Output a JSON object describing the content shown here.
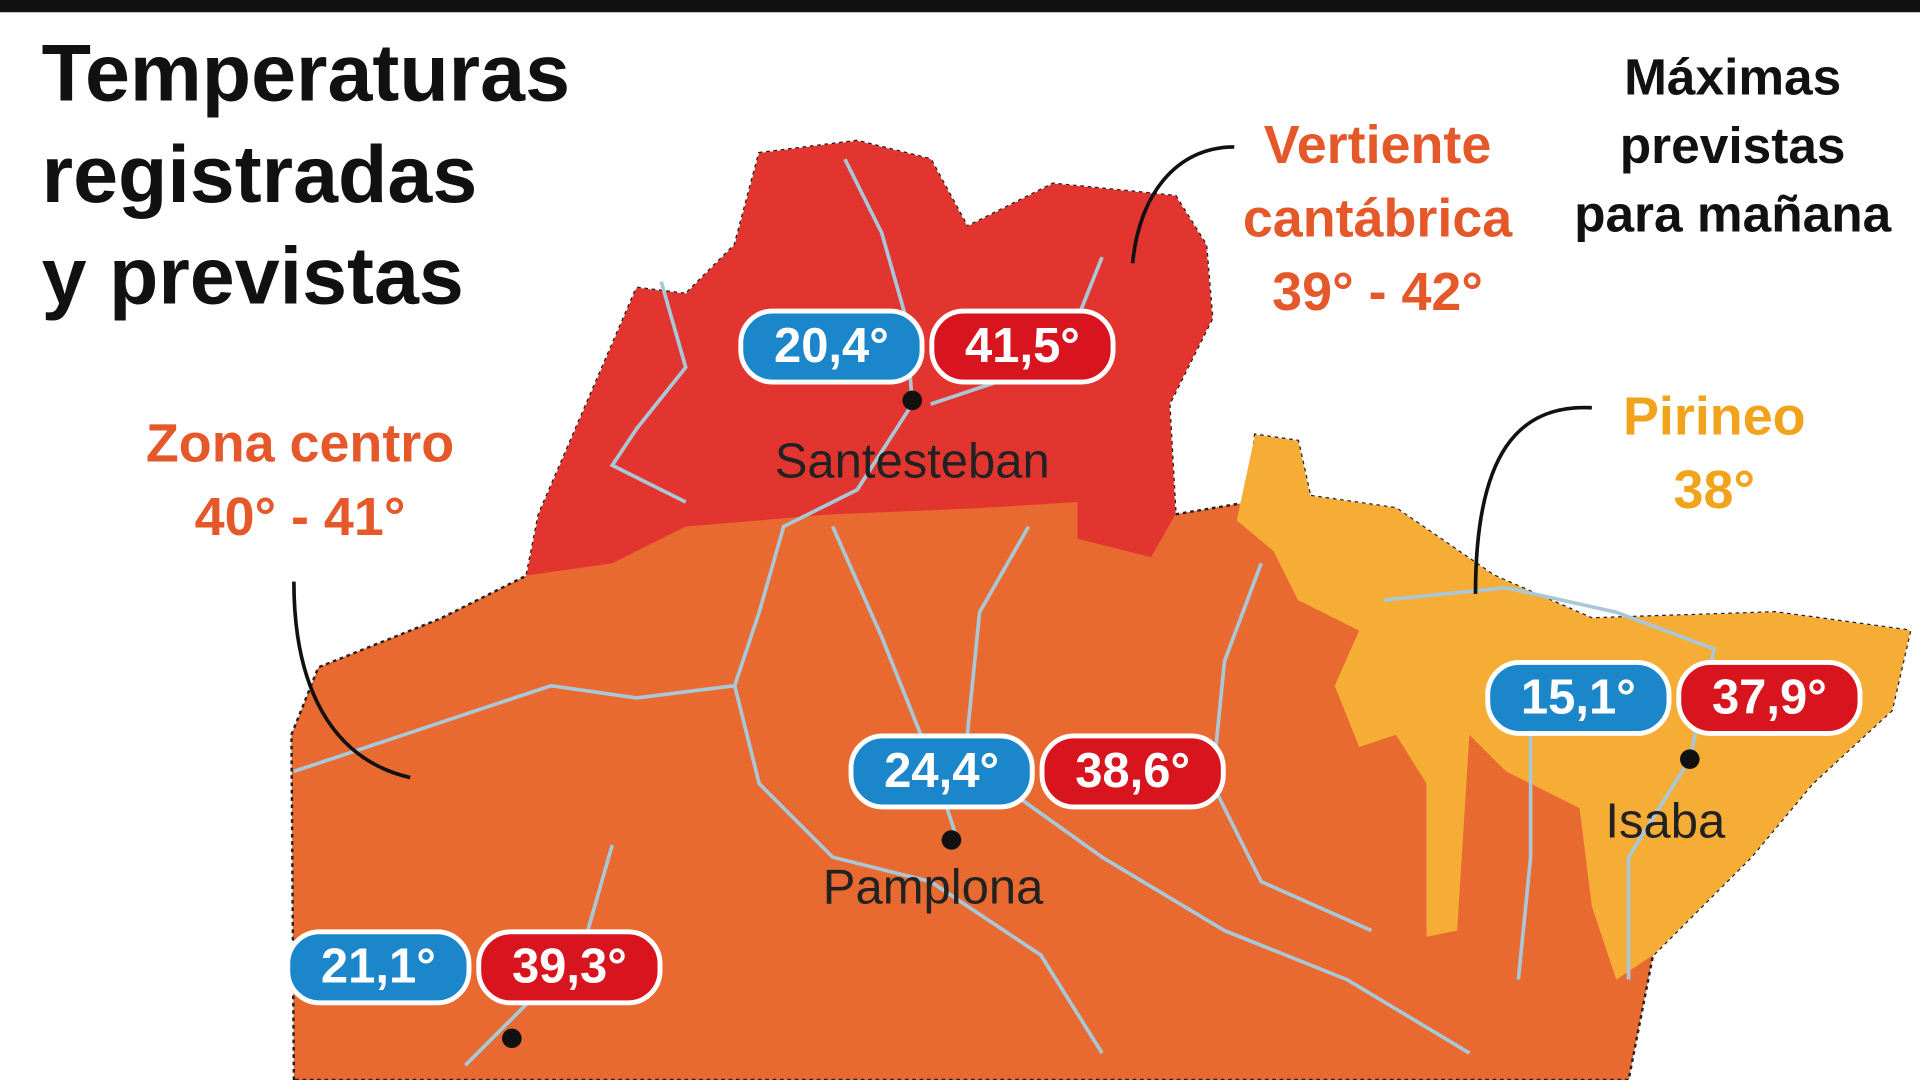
{
  "header": {
    "title": [
      "Temperaturas",
      "registradas",
      "y previstas"
    ],
    "legend": [
      "Máximas",
      "previstas",
      "para mañana"
    ]
  },
  "zones": [
    {
      "name": [
        "Vertiente",
        "cantábrica"
      ],
      "range": "39° - 42°"
    },
    {
      "name": [
        "Zona centro"
      ],
      "range": "40° - 41°"
    },
    {
      "name": [
        "Pirineo"
      ],
      "range": "38°"
    }
  ],
  "cities": [
    {
      "name": "Santesteban",
      "registered": "20,4°",
      "forecast": "41,5°"
    },
    {
      "name": "Pamplona",
      "registered": "24,4°",
      "forecast": "38,6°"
    },
    {
      "name": "Isaba",
      "registered": "15,1°",
      "forecast": "37,9°"
    },
    {
      "registered": "21,1°",
      "forecast": "39,3°"
    }
  ]
}
